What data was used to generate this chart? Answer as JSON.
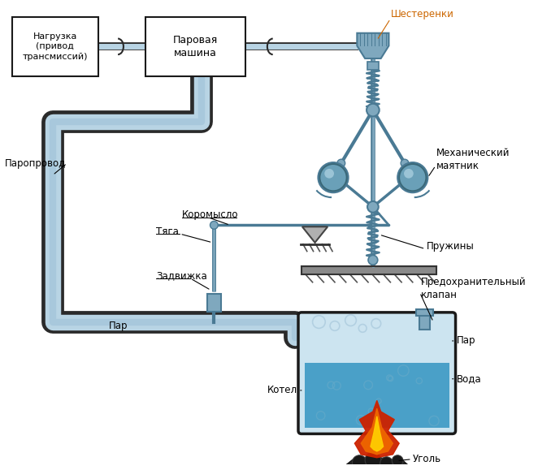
{
  "labels": {
    "nagruzka": "Нагрузка\n(привод\nтрансмиссий)",
    "parovaya": "Паровая\nмашина",
    "shesterenki": "Шестеренки",
    "paroprovod": "Паропровод",
    "koromyslo": "Коромысло",
    "tyaga": "Тяга",
    "zadvizhka": "Задвижка",
    "par_low": "Пар",
    "predohranitelny": "Предохранительный\nклапан",
    "par_right": "Пар",
    "kotel": "Котел",
    "voda": "Вода",
    "ugol": "Уголь",
    "pruzhiny": "Пружины",
    "mekhanicheskiy": "Механический\nмаятник"
  },
  "colors": {
    "pipe_outer": "#2a2a2a",
    "pipe_fill": "#b8d4e4",
    "pipe_inner": "#90b8ce",
    "box_stroke": "#1a1a1a",
    "box_fill": "#ffffff",
    "governor_metal": "#7fa8be",
    "governor_dark": "#4a7a94",
    "ball_color": "#5a87a0",
    "boiler_fill_top": "#cce4f0",
    "boiler_fill_water": "#4aa0c8",
    "boiler_stroke": "#1a1a1a",
    "fire_red": "#cc2200",
    "fire_orange": "#ee6600",
    "fire_yellow": "#ffcc00",
    "coal_color": "#222222",
    "label_color": "#000000",
    "shesterenki_label": "#cc6600",
    "water_bubble": "#80c0e0",
    "spring_color": "#7fa8be"
  },
  "figsize": [
    6.78,
    5.79
  ],
  "dpi": 100
}
